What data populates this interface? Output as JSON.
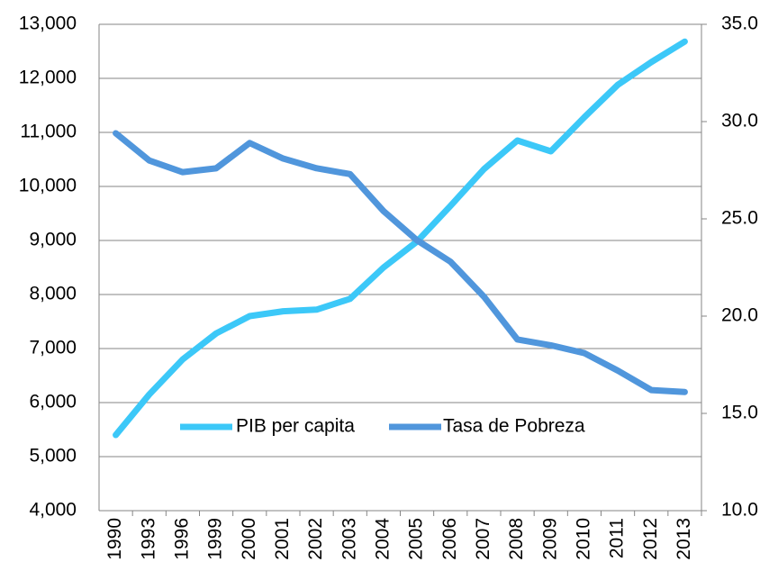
{
  "chart_data": {
    "type": "line",
    "categories": [
      "1990",
      "1993",
      "1996",
      "1999",
      "2000",
      "2001",
      "2002",
      "2003",
      "2004",
      "2005",
      "2006",
      "2007",
      "2008",
      "2009",
      "2010",
      "2011",
      "2012",
      "2013"
    ],
    "series": [
      {
        "name": "PIB per capita",
        "color": "#3cc8f8",
        "values": [
          5400,
          6150,
          6800,
          7280,
          7600,
          7690,
          7720,
          7920,
          8500,
          8980,
          9640,
          10320,
          10850,
          10650,
          11280,
          11880,
          12300,
          12680
        ]
      },
      {
        "name": "Tasa de Pobreza",
        "color": "#5096dc",
        "axis": "y2",
        "values": [
          29.4,
          28.0,
          27.4,
          27.6,
          28.9,
          28.1,
          27.6,
          27.3,
          25.4,
          23.9,
          22.8,
          21.0,
          18.8,
          18.5,
          18.1,
          17.2,
          16.2,
          16.1
        ]
      }
    ],
    "ylim": [
      4000,
      13000
    ],
    "yticks": [
      {
        "value": 4000,
        "label": "4,000"
      },
      {
        "value": 5000,
        "label": "5,000"
      },
      {
        "value": 6000,
        "label": "6,000"
      },
      {
        "value": 7000,
        "label": "7,000"
      },
      {
        "value": 8000,
        "label": "8,000"
      },
      {
        "value": 9000,
        "label": "9,000"
      },
      {
        "value": 10000,
        "label": "10,000"
      },
      {
        "value": 11000,
        "label": "11,000"
      },
      {
        "value": 12000,
        "label": "12,000"
      },
      {
        "value": 13000,
        "label": "13,000"
      }
    ],
    "y2lim": [
      10,
      35
    ],
    "y2ticks": [
      {
        "value": 10,
        "label": "10.0"
      },
      {
        "value": 15,
        "label": "15.0"
      },
      {
        "value": 20,
        "label": "20.0"
      },
      {
        "value": 25,
        "label": "25.0"
      },
      {
        "value": 30,
        "label": "30.0"
      },
      {
        "value": 35,
        "label": "35.0"
      }
    ],
    "grid": true
  }
}
